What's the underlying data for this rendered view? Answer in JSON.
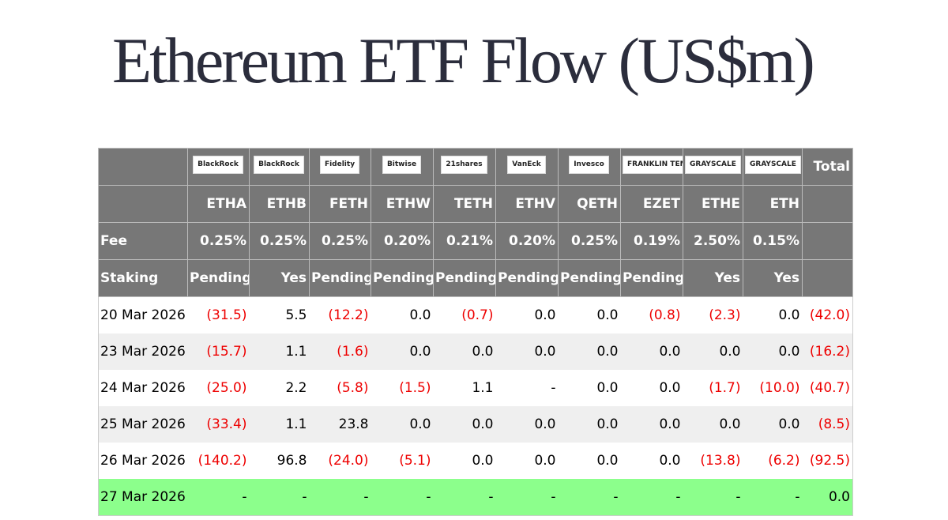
{
  "title": "Ethereum ETF Flow (US$m)",
  "table": {
    "logos": [
      "BlackRock",
      "BlackRock",
      "Fidelity",
      "Bitwise",
      "21shares",
      "VanEck",
      "Invesco",
      "FRANKLIN TEMPLETON",
      "GRAYSCALE",
      "GRAYSCALE"
    ],
    "total_label": "Total",
    "tickers": [
      "ETHA",
      "ETHB",
      "FETH",
      "ETHW",
      "TETH",
      "ETHV",
      "QETH",
      "EZET",
      "ETHE",
      "ETH"
    ],
    "fee_label": "Fee",
    "fees": [
      "0.25%",
      "0.25%",
      "0.25%",
      "0.20%",
      "0.21%",
      "0.20%",
      "0.25%",
      "0.19%",
      "2.50%",
      "0.15%"
    ],
    "staking_label": "Staking",
    "staking": [
      "Pending",
      "Yes",
      "Pending",
      "Pending",
      "Pending",
      "Pending",
      "Pending",
      "Pending",
      "Yes",
      "Yes"
    ],
    "rows": [
      [
        "20 Mar 2026",
        "(31.5)",
        "5.5",
        "(12.2)",
        "0.0",
        "(0.7)",
        "0.0",
        "0.0",
        "(0.8)",
        "(2.3)",
        "0.0",
        "(42.0)"
      ],
      [
        "23 Mar 2026",
        "(15.7)",
        "1.1",
        "(1.6)",
        "0.0",
        "0.0",
        "0.0",
        "0.0",
        "0.0",
        "0.0",
        "0.0",
        "(16.2)"
      ],
      [
        "24 Mar 2026",
        "(25.0)",
        "2.2",
        "(5.8)",
        "(1.5)",
        "1.1",
        "-",
        "0.0",
        "0.0",
        "(1.7)",
        "(10.0)",
        "(40.7)"
      ],
      [
        "25 Mar 2026",
        "(33.4)",
        "1.1",
        "23.8",
        "0.0",
        "0.0",
        "0.0",
        "0.0",
        "0.0",
        "0.0",
        "0.0",
        "(8.5)"
      ],
      [
        "26 Mar 2026",
        "(140.2)",
        "96.8",
        "(24.0)",
        "(5.1)",
        "0.0",
        "0.0",
        "0.0",
        "0.0",
        "(13.8)",
        "(6.2)",
        "(92.5)"
      ],
      [
        "27 Mar 2026",
        "-",
        "-",
        "-",
        "-",
        "-",
        "-",
        "-",
        "-",
        "-",
        "-",
        "0.0"
      ]
    ]
  }
}
